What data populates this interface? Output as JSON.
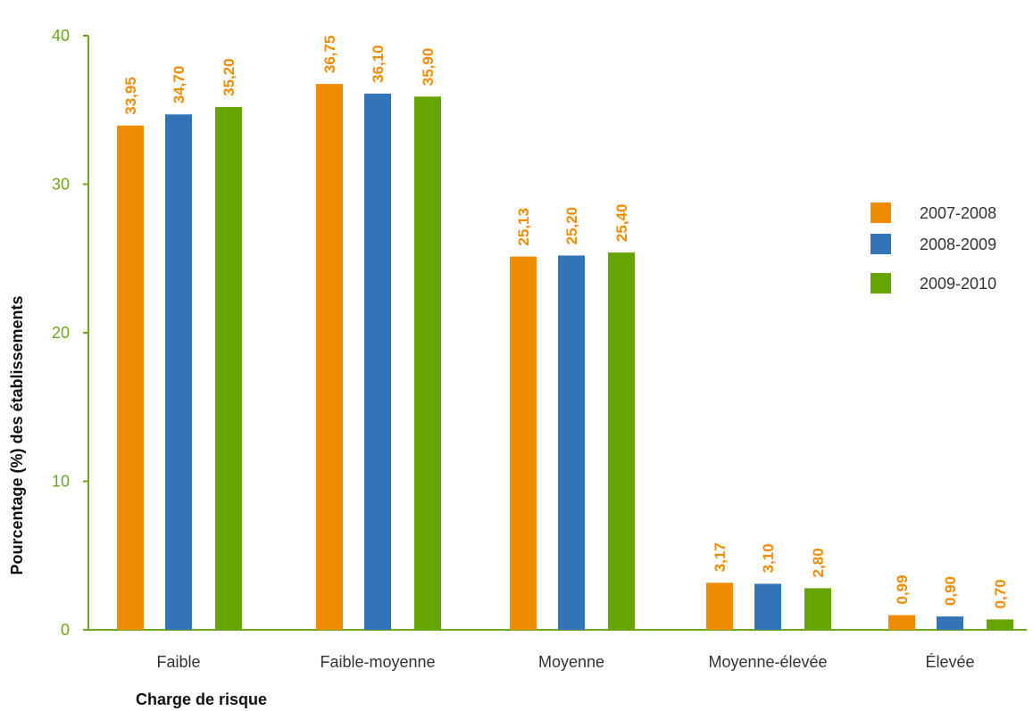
{
  "chart_data": {
    "type": "bar",
    "title": "",
    "xlabel": "Charge de risque",
    "ylabel": "Pourcentage (%) des établissements",
    "ylim": [
      0,
      40
    ],
    "yticks": [
      "0",
      "10",
      "20",
      "30",
      "40"
    ],
    "grid": false,
    "legend_position": "right",
    "categories": [
      "Faible",
      "Faible-moyenne",
      "Moyenne",
      "Moyenne-élevée",
      "Élevée"
    ],
    "series": [
      {
        "name": "2007-2008",
        "color": "#f08c00",
        "values": [
          33.95,
          36.75,
          25.13,
          3.17,
          0.99
        ],
        "labels": [
          "33,95",
          "36,75",
          "25,13",
          "3,17",
          "0,99"
        ]
      },
      {
        "name": "2008-2009",
        "color": "#3374b9",
        "values": [
          34.7,
          36.1,
          25.2,
          3.1,
          0.9
        ],
        "labels": [
          "34,70",
          "36,10",
          "25,20",
          "3,10",
          "0,90"
        ]
      },
      {
        "name": "2009-2010",
        "color": "#66a500",
        "values": [
          35.2,
          35.9,
          25.4,
          2.8,
          0.7
        ],
        "labels": [
          "35,20",
          "35,90",
          "25,40",
          "2,80",
          "0,70"
        ]
      }
    ],
    "axis_color": "#6aa71a",
    "label_color": "#f08c00"
  }
}
